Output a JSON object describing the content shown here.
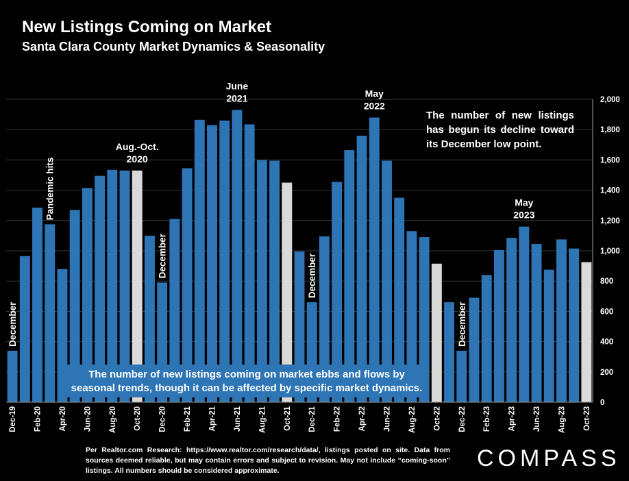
{
  "header": {
    "title": "New Listings Coming on Market",
    "subtitle": "Santa Clara County Market Dynamics & Seasonality"
  },
  "chart_data": {
    "type": "bar",
    "categories": [
      "Dec-19",
      "Jan-20",
      "Feb-20",
      "Mar-20",
      "Apr-20",
      "May-20",
      "Jun-20",
      "Jul-20",
      "Aug-20",
      "Sep-20",
      "Oct-20",
      "Nov-20",
      "Dec-20",
      "Jan-21",
      "Feb-21",
      "Mar-21",
      "Apr-21",
      "May-21",
      "Jun-21",
      "Jul-21",
      "Aug-21",
      "Sep-21",
      "Oct-21",
      "Nov-21",
      "Dec-21",
      "Jan-22",
      "Feb-22",
      "Mar-22",
      "Apr-22",
      "May-22",
      "Jun-22",
      "Jul-22",
      "Aug-22",
      "Sep-22",
      "Oct-22",
      "Nov-22",
      "Dec-22",
      "Jan-23",
      "Feb-23",
      "Mar-23",
      "Apr-23",
      "May-23",
      "Jun-23",
      "Jul-23",
      "Aug-23",
      "Sep-23",
      "Oct-23"
    ],
    "values": [
      340,
      965,
      1285,
      1175,
      880,
      1270,
      1415,
      1495,
      1535,
      1530,
      1530,
      1100,
      790,
      1210,
      1545,
      1865,
      1830,
      1860,
      1930,
      1835,
      1600,
      1595,
      1450,
      995,
      660,
      1095,
      1455,
      1665,
      1760,
      1880,
      1595,
      1350,
      1130,
      1090,
      915,
      660,
      340,
      690,
      840,
      1005,
      1085,
      1160,
      1045,
      875,
      1075,
      1015,
      925
    ],
    "highlight_indices": [
      10,
      22,
      34,
      46
    ],
    "tick_label_indices": [
      0,
      2,
      4,
      6,
      8,
      10,
      12,
      14,
      16,
      18,
      20,
      22,
      24,
      26,
      28,
      30,
      32,
      34,
      36,
      38,
      40,
      42,
      44,
      46
    ],
    "y_ticks": [
      "0",
      "200",
      "400",
      "600",
      "800",
      "1,000",
      "1,200",
      "1,400",
      "1,600",
      "1,800",
      "2,000"
    ],
    "ylim": [
      0,
      2000
    ],
    "colors": {
      "bar": "#2e75b6",
      "highlight": "#d9d9d9",
      "grid": "#3a3a3a"
    },
    "annotations": [
      {
        "text": "December",
        "index": 0,
        "vertical": true
      },
      {
        "text": "Pandemic hits",
        "index": 3,
        "vertical": true
      },
      {
        "text": "Aug.-Oct.",
        "text2": "2020",
        "index": 10,
        "vertical": false
      },
      {
        "text": "December",
        "index": 12,
        "vertical": true
      },
      {
        "text": "June",
        "text2": "2021",
        "index": 18,
        "vertical": false
      },
      {
        "text": "December",
        "index": 24,
        "vertical": true
      },
      {
        "text": "May",
        "text2": "2022",
        "index": 29,
        "vertical": false
      },
      {
        "text": "December",
        "index": 36,
        "vertical": true
      },
      {
        "text": "May",
        "text2": "2023",
        "index": 41,
        "vertical": false
      }
    ]
  },
  "notes": {
    "box": "The number of new listings coming on market ebbs and flows by seasonal trends, though it can be affected by specific market dynamics.",
    "right": "The number of new listings has begun its decline toward its December low point."
  },
  "footer": {
    "source": "Per Realtor.com Research: https://www.realtor.com/research/data/, listings posted on site. Data from sources deemed reliable, but may contain errors and subject to revision. May not include “coming-soon” listings. All numbers should be considered approximate.",
    "logo": "COMPASS"
  }
}
